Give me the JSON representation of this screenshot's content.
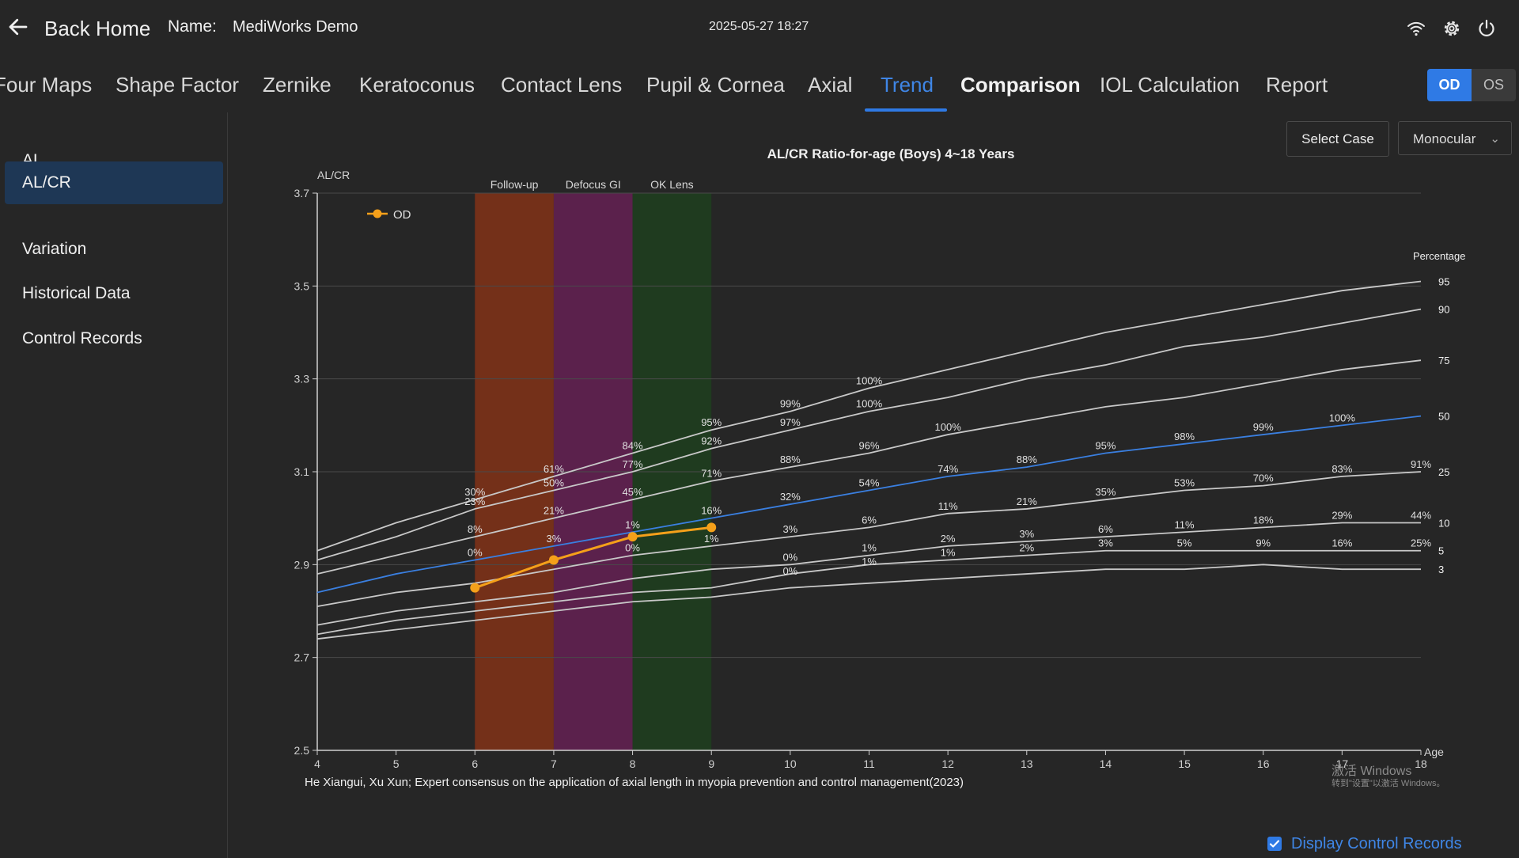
{
  "header": {
    "back_label": "Back Home",
    "name_label": "Name:",
    "name_value": "MediWorks Demo",
    "datetime": "2025-05-27 18:27",
    "icons": [
      "wifi-icon",
      "gear-icon",
      "power-icon"
    ]
  },
  "tabs": [
    {
      "label": "Four Maps"
    },
    {
      "label": "Shape Factor"
    },
    {
      "label": "Zernike"
    },
    {
      "label": "Keratoconus"
    },
    {
      "label": "Contact Lens"
    },
    {
      "label": "Pupil & Cornea"
    },
    {
      "label": "Axial"
    },
    {
      "label": "Trend",
      "active": true
    },
    {
      "label": "Comparison"
    },
    {
      "label": "IOL Calculation"
    },
    {
      "label": "Report"
    }
  ],
  "eye_toggle": {
    "od": "OD",
    "os": "OS",
    "selected": "OD"
  },
  "sidebar": {
    "items": [
      {
        "label": "AL"
      },
      {
        "label": "AL/CR",
        "active": true
      },
      {
        "label": "Variation"
      },
      {
        "label": "Historical Data"
      },
      {
        "label": "Control Records"
      }
    ]
  },
  "controls": {
    "select_case": "Select Case",
    "mode_value": "Monocular"
  },
  "display_records": {
    "label": "Display Control Records",
    "checked": true
  },
  "watermark": {
    "line1": "激活 Windows",
    "line2": "转到\"设置\"以激活 Windows。"
  },
  "colors": {
    "accent": "#2f7ae5",
    "od_series": "#f5a01a",
    "percentile": "#c8c8c8",
    "p50": "#3a7fe0"
  },
  "chart_data": {
    "type": "line",
    "title": "AL/CR Ratio-for-age (Boys) 4~18 Years",
    "ylabel": "AL/CR",
    "xlabel": "Age",
    "percentile_label": "Percentage",
    "reference": "He Xiangui, Xu Xun; Expert consensus on the application of axial length in myopia prevention and control management(2023)",
    "xlim": [
      4,
      18
    ],
    "ylim": [
      2.5,
      3.7
    ],
    "x_ticks": [
      4,
      5,
      6,
      7,
      8,
      9,
      10,
      11,
      12,
      13,
      14,
      15,
      16,
      17,
      18
    ],
    "y_ticks": [
      "2.5",
      "2.7",
      "2.9",
      "3.1",
      "3.3",
      "3.5",
      "3.7"
    ],
    "grid": true,
    "legend": "top-left",
    "bands": [
      {
        "label": "Follow-up",
        "x0": 6,
        "x1": 7,
        "color": "#743019"
      },
      {
        "label": "Defocus GI",
        "x0": 7,
        "x1": 8,
        "color": "#5b214c"
      },
      {
        "label": "OK Lens",
        "x0": 8,
        "x1": 9,
        "color": "#1f3b1f"
      }
    ],
    "percentiles": [
      {
        "name": "95",
        "x": [
          4,
          5,
          6,
          7,
          8,
          9,
          10,
          11,
          12,
          13,
          14,
          15,
          16,
          17,
          18
        ],
        "y": [
          2.93,
          2.99,
          3.04,
          3.09,
          3.14,
          3.19,
          3.23,
          3.28,
          3.32,
          3.36,
          3.4,
          3.43,
          3.46,
          3.49,
          3.51
        ]
      },
      {
        "name": "90",
        "x": [
          4,
          5,
          6,
          7,
          8,
          9,
          10,
          11,
          12,
          13,
          14,
          15,
          16,
          17,
          18
        ],
        "y": [
          2.91,
          2.96,
          3.02,
          3.06,
          3.1,
          3.15,
          3.19,
          3.23,
          3.26,
          3.3,
          3.33,
          3.37,
          3.39,
          3.42,
          3.45
        ]
      },
      {
        "name": "75",
        "x": [
          4,
          5,
          6,
          7,
          8,
          9,
          10,
          11,
          12,
          13,
          14,
          15,
          16,
          17,
          18
        ],
        "y": [
          2.88,
          2.92,
          2.96,
          3.0,
          3.04,
          3.08,
          3.11,
          3.14,
          3.18,
          3.21,
          3.24,
          3.26,
          3.29,
          3.32,
          3.34
        ]
      },
      {
        "name": "50",
        "x": [
          4,
          5,
          6,
          7,
          8,
          9,
          10,
          11,
          12,
          13,
          14,
          15,
          16,
          17,
          18
        ],
        "y": [
          2.84,
          2.88,
          2.91,
          2.94,
          2.97,
          3.0,
          3.03,
          3.06,
          3.09,
          3.11,
          3.14,
          3.16,
          3.18,
          3.2,
          3.22
        ]
      },
      {
        "name": "25",
        "x": [
          4,
          5,
          6,
          7,
          8,
          9,
          10,
          11,
          12,
          13,
          14,
          15,
          16,
          17,
          18
        ],
        "y": [
          2.81,
          2.84,
          2.86,
          2.89,
          2.92,
          2.94,
          2.96,
          2.98,
          3.01,
          3.02,
          3.04,
          3.06,
          3.07,
          3.09,
          3.1
        ]
      },
      {
        "name": "10",
        "x": [
          4,
          5,
          6,
          7,
          8,
          9,
          10,
          11,
          12,
          13,
          14,
          15,
          16,
          17,
          18
        ],
        "y": [
          2.77,
          2.8,
          2.82,
          2.84,
          2.87,
          2.89,
          2.9,
          2.92,
          2.94,
          2.95,
          2.96,
          2.97,
          2.98,
          2.99,
          2.99
        ]
      },
      {
        "name": "5",
        "x": [
          4,
          5,
          6,
          7,
          8,
          9,
          10,
          11,
          12,
          13,
          14,
          15,
          16,
          17,
          18
        ],
        "y": [
          2.75,
          2.78,
          2.8,
          2.82,
          2.84,
          2.85,
          2.88,
          2.9,
          2.91,
          2.92,
          2.93,
          2.93,
          2.93,
          2.93,
          2.93
        ]
      },
      {
        "name": "3",
        "x": [
          4,
          5,
          6,
          7,
          8,
          9,
          10,
          11,
          12,
          13,
          14,
          15,
          16,
          17,
          18
        ],
        "y": [
          2.74,
          2.76,
          2.78,
          2.8,
          2.82,
          2.83,
          2.85,
          2.86,
          2.87,
          2.88,
          2.89,
          2.89,
          2.9,
          2.89,
          2.89
        ]
      }
    ],
    "series": [
      {
        "name": "OD",
        "x": [
          6,
          7,
          8,
          9
        ],
        "y": [
          2.85,
          2.91,
          2.96,
          2.98
        ]
      }
    ],
    "point_labels": [
      {
        "x": 6,
        "y": 3.04,
        "text": "30%"
      },
      {
        "x": 6,
        "y": 3.02,
        "text": "23%"
      },
      {
        "x": 6,
        "y": 2.96,
        "text": "8%"
      },
      {
        "x": 6,
        "y": 2.91,
        "text": "0%"
      },
      {
        "x": 7,
        "y": 3.09,
        "text": "61%"
      },
      {
        "x": 7,
        "y": 3.06,
        "text": "50%"
      },
      {
        "x": 7,
        "y": 3.0,
        "text": "21%"
      },
      {
        "x": 7,
        "y": 2.94,
        "text": "3%"
      },
      {
        "x": 8,
        "y": 3.14,
        "text": "84%"
      },
      {
        "x": 8,
        "y": 3.1,
        "text": "77%"
      },
      {
        "x": 8,
        "y": 3.04,
        "text": "45%"
      },
      {
        "x": 8,
        "y": 2.97,
        "text": "1%"
      },
      {
        "x": 8,
        "y": 2.92,
        "text": "0%"
      },
      {
        "x": 9,
        "y": 3.19,
        "text": "95%"
      },
      {
        "x": 9,
        "y": 3.15,
        "text": "92%"
      },
      {
        "x": 9,
        "y": 3.08,
        "text": "71%"
      },
      {
        "x": 9,
        "y": 3.0,
        "text": "16%"
      },
      {
        "x": 9,
        "y": 2.94,
        "text": "1%"
      },
      {
        "x": 10,
        "y": 3.23,
        "text": "99%"
      },
      {
        "x": 10,
        "y": 3.19,
        "text": "97%"
      },
      {
        "x": 10,
        "y": 3.11,
        "text": "88%"
      },
      {
        "x": 10,
        "y": 3.03,
        "text": "32%"
      },
      {
        "x": 10,
        "y": 2.96,
        "text": "3%"
      },
      {
        "x": 10,
        "y": 2.9,
        "text": "0%"
      },
      {
        "x": 10,
        "y": 2.87,
        "text": "0%"
      },
      {
        "x": 11,
        "y": 3.28,
        "text": "100%"
      },
      {
        "x": 11,
        "y": 3.23,
        "text": "100%"
      },
      {
        "x": 11,
        "y": 3.14,
        "text": "96%"
      },
      {
        "x": 11,
        "y": 3.06,
        "text": "54%"
      },
      {
        "x": 11,
        "y": 2.98,
        "text": "6%"
      },
      {
        "x": 11,
        "y": 2.92,
        "text": "1%"
      },
      {
        "x": 11,
        "y": 2.89,
        "text": "1%"
      },
      {
        "x": 12,
        "y": 3.18,
        "text": "100%"
      },
      {
        "x": 12,
        "y": 3.09,
        "text": "74%"
      },
      {
        "x": 12,
        "y": 3.01,
        "text": "11%"
      },
      {
        "x": 12,
        "y": 2.94,
        "text": "2%"
      },
      {
        "x": 12,
        "y": 2.91,
        "text": "1%"
      },
      {
        "x": 13,
        "y": 3.11,
        "text": "88%"
      },
      {
        "x": 13,
        "y": 3.02,
        "text": "21%"
      },
      {
        "x": 13,
        "y": 2.95,
        "text": "3%"
      },
      {
        "x": 13,
        "y": 2.92,
        "text": "2%"
      },
      {
        "x": 14,
        "y": 3.14,
        "text": "95%"
      },
      {
        "x": 14,
        "y": 3.04,
        "text": "35%"
      },
      {
        "x": 14,
        "y": 2.96,
        "text": "6%"
      },
      {
        "x": 14,
        "y": 2.93,
        "text": "3%"
      },
      {
        "x": 15,
        "y": 3.16,
        "text": "98%"
      },
      {
        "x": 15,
        "y": 3.06,
        "text": "53%"
      },
      {
        "x": 15,
        "y": 2.97,
        "text": "11%"
      },
      {
        "x": 15,
        "y": 2.93,
        "text": "5%"
      },
      {
        "x": 16,
        "y": 3.18,
        "text": "99%"
      },
      {
        "x": 16,
        "y": 3.07,
        "text": "70%"
      },
      {
        "x": 16,
        "y": 2.98,
        "text": "18%"
      },
      {
        "x": 16,
        "y": 2.93,
        "text": "9%"
      },
      {
        "x": 17,
        "y": 3.2,
        "text": "100%"
      },
      {
        "x": 17,
        "y": 3.09,
        "text": "83%"
      },
      {
        "x": 17,
        "y": 2.99,
        "text": "29%"
      },
      {
        "x": 17,
        "y": 2.93,
        "text": "16%"
      },
      {
        "x": 18,
        "y": 3.1,
        "text": "91%"
      },
      {
        "x": 18,
        "y": 2.99,
        "text": "44%"
      },
      {
        "x": 18,
        "y": 2.93,
        "text": "25%"
      }
    ]
  }
}
